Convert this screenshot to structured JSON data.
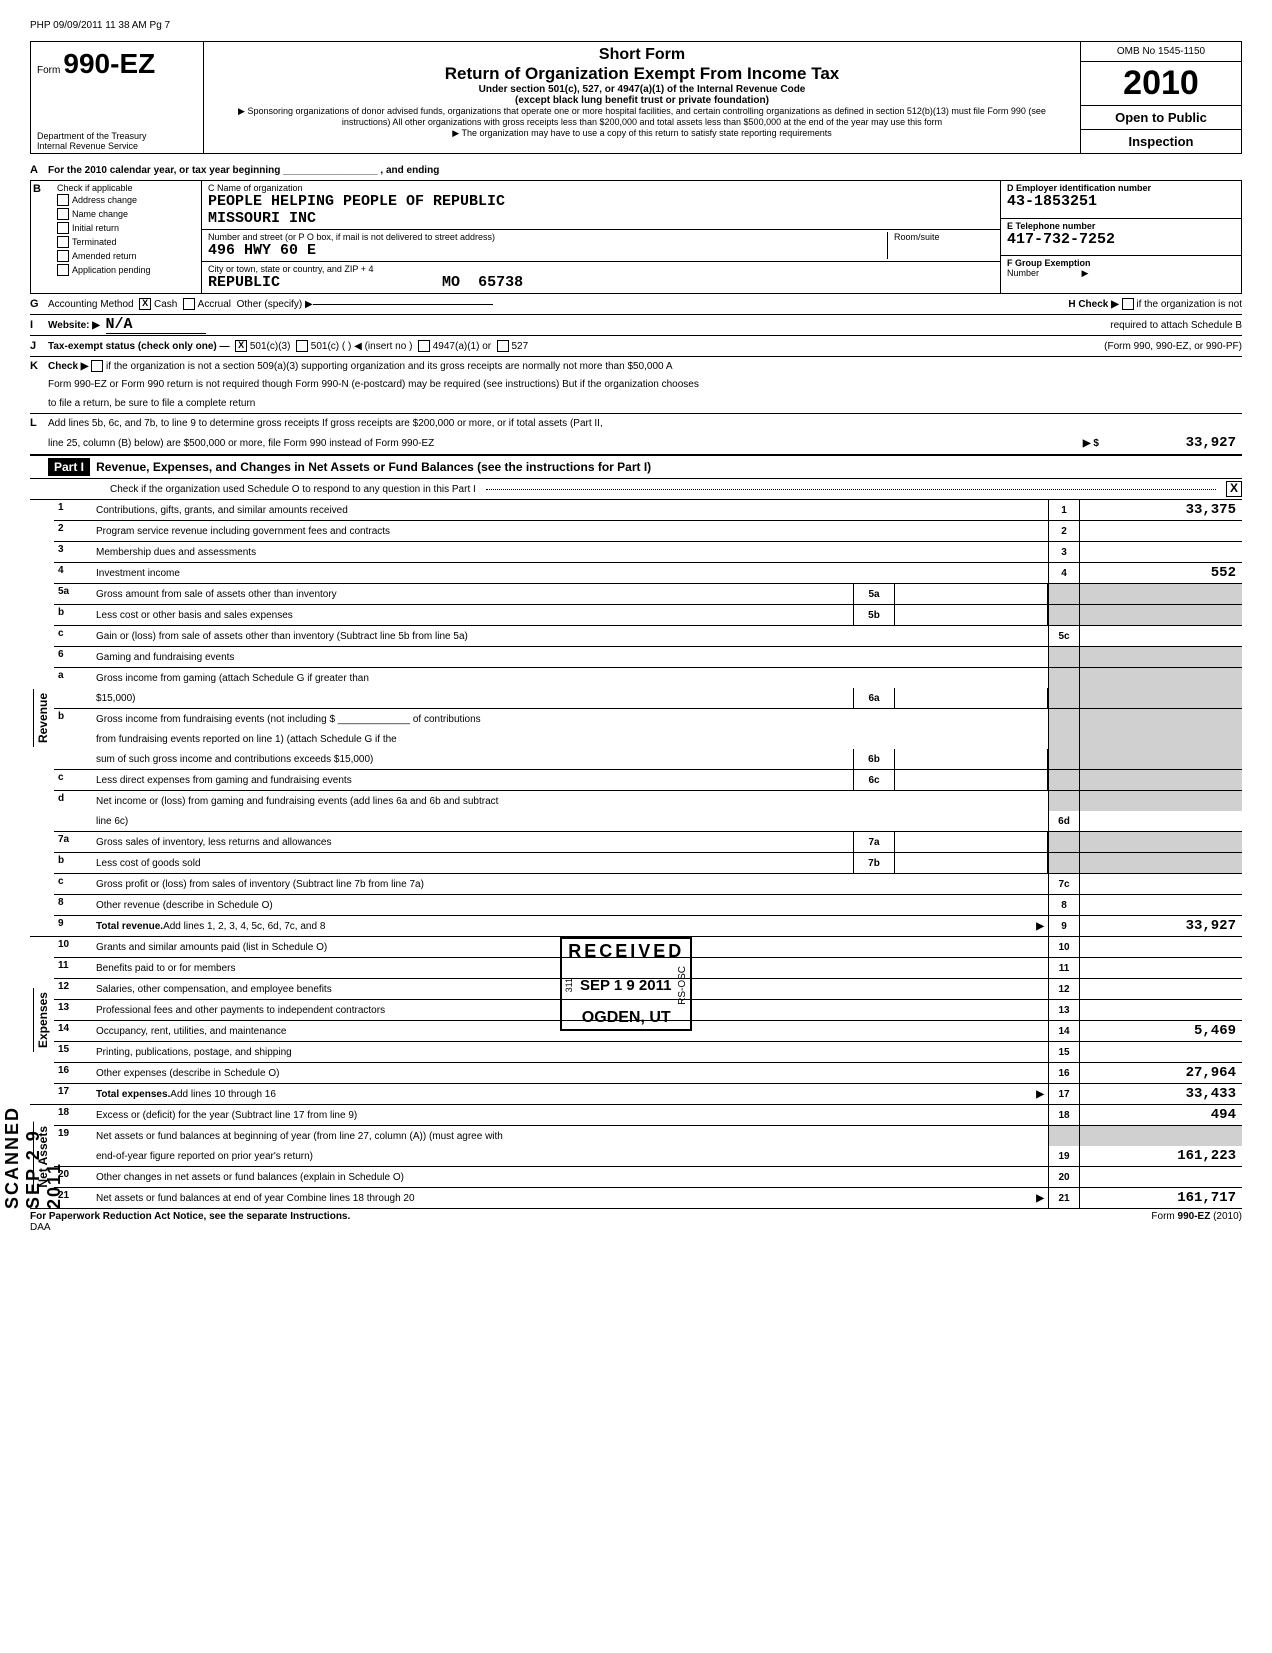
{
  "page_header": "PHP 09/09/2011 11 38 AM Pg 7",
  "form": {
    "prefix": "Form",
    "number": "990-EZ",
    "dept": "Department of the Treasury\nInternal Revenue Service"
  },
  "title": {
    "short": "Short Form",
    "main": "Return of Organization Exempt From Income Tax",
    "sub1": "Under section 501(c), 527, or 4947(a)(1) of the Internal Revenue Code",
    "sub2": "(except black lung benefit trust or private foundation)",
    "fine1": "▶ Sponsoring organizations of donor advised funds, organizations that operate one or more hospital facilities, and certain controlling organizations as defined in section 512(b)(13) must file Form 990 (see instructions) All other organizations with gross receipts less than $200,000 and total assets less than $500,000 at the end of the year may use this form",
    "fine2": "▶ The organization may have to use a copy of this return to satisfy state reporting requirements"
  },
  "right_box": {
    "omb": "OMB No 1545-1150",
    "year": "2010",
    "open": "Open to Public",
    "inspection": "Inspection"
  },
  "line_a": "For the 2010 calendar year, or tax year beginning _________________ , and ending",
  "check_b": {
    "header": "Check if applicable",
    "items": [
      "Address change",
      "Name change",
      "Initial return",
      "Terminated",
      "Amended return",
      "Application pending"
    ]
  },
  "org": {
    "c_label": "C  Name of organization",
    "name1": "PEOPLE HELPING PEOPLE OF REPUBLIC",
    "name2": "MISSOURI INC",
    "addr_label": "Number and street (or P O  box, if mail is not delivered to street address)",
    "room_label": "Room/suite",
    "addr": "496 HWY 60 E",
    "city_label": "City or town, state or country, and ZIP + 4",
    "city": "REPUBLIC",
    "state": "MO",
    "zip": "65738"
  },
  "right_info": {
    "d_label": "D  Employer identification number",
    "ein": "43-1853251",
    "e_label": "E  Telephone number",
    "phone": "417-732-7252",
    "f_label": "F  Group Exemption",
    "f_label2": "Number",
    "f_arrow": "▶"
  },
  "line_g": {
    "label": "Accounting Method",
    "cash_x": "X",
    "cash": "Cash",
    "accrual": "Accrual",
    "other": "Other (specify) ▶",
    "h_label": "H  Check ▶",
    "h_text": "if the organization is not",
    "h_text2": "required to attach Schedule B"
  },
  "line_i": {
    "label": "Website: ▶",
    "value": "N/A"
  },
  "line_j": {
    "label": "Tax-exempt status (check only one) —",
    "x": "X",
    "opts": [
      "501(c)(3)",
      "501(c) (      ) ◀ (insert no )",
      "4947(a)(1) or",
      "527"
    ],
    "right": "(Form 990, 990-EZ, or 990-PF)"
  },
  "line_k": {
    "label": "Check ▶",
    "text": "if the organization is not a section 509(a)(3) supporting organization and its gross receipts are normally not more than $50,000  A",
    "text2": "Form 990-EZ or Form 990 return is not required though Form 990-N (e-postcard) may be required (see instructions)  But if the organization chooses",
    "text3": "to file a return, be sure to file a complete return"
  },
  "line_l": {
    "text1": "Add lines 5b, 6c, and 7b, to line 9 to determine gross receipts  If gross receipts are $200,000 or more, or if total assets (Part II,",
    "text2": "line 25, column (B) below) are $500,000 or more, file Form 990 instead of Form 990-EZ",
    "arrow": "▶ $",
    "amount": "33,927"
  },
  "part1": {
    "label": "Part I",
    "title": "Revenue, Expenses, and Changes in Net Assets or Fund Balances (see the instructions for Part I)",
    "check_text": "Check if the organization used Schedule O to respond to any question in this Part I",
    "check_x": "X"
  },
  "sections": {
    "revenue": "Revenue",
    "expenses": "Expenses",
    "netassets": "Net Assets"
  },
  "rows": [
    {
      "n": "1",
      "d": "Contributions, gifts, grants, and similar amounts received",
      "ln": "1",
      "amt": "33,375"
    },
    {
      "n": "2",
      "d": "Program service revenue including government fees and contracts",
      "ln": "2",
      "amt": ""
    },
    {
      "n": "3",
      "d": "Membership dues and assessments",
      "ln": "3",
      "amt": ""
    },
    {
      "n": "4",
      "d": "Investment income",
      "ln": "4",
      "amt": "552"
    },
    {
      "n": "5a",
      "d": "Gross amount from sale of assets other than inventory",
      "sub": "5a"
    },
    {
      "n": "b",
      "d": "Less  cost or other basis and sales expenses",
      "sub": "5b"
    },
    {
      "n": "c",
      "d": "Gain or (loss) from sale of assets other than inventory (Subtract line 5b from line 5a)",
      "ln": "5c",
      "amt": ""
    },
    {
      "n": "6",
      "d": "Gaming and fundraising events"
    },
    {
      "n": "a",
      "d": "Gross income from gaming (attach Schedule G if greater than",
      "d2": "$15,000)",
      "sub": "6a"
    },
    {
      "n": "b",
      "d": "Gross income from fundraising events (not including  $ _____________ of contributions",
      "d2": "from fundraising events reported on line 1) (attach Schedule G if the",
      "d3": "sum of such gross income and contributions exceeds $15,000)",
      "sub": "6b"
    },
    {
      "n": "c",
      "d": "Less  direct expenses from gaming and fundraising events",
      "sub": "6c"
    },
    {
      "n": "d",
      "d": "Net income or (loss) from gaming and fundraising events (add lines 6a and 6b and subtract",
      "d2": "line 6c)",
      "ln": "6d",
      "amt": ""
    },
    {
      "n": "7a",
      "d": "Gross sales of inventory, less returns and allowances",
      "sub": "7a"
    },
    {
      "n": "b",
      "d": "Less  cost of goods sold",
      "sub": "7b"
    },
    {
      "n": "c",
      "d": "Gross profit or (loss) from sales of inventory (Subtract line 7b from line 7a)",
      "ln": "7c",
      "amt": ""
    },
    {
      "n": "8",
      "d": "Other revenue (describe in Schedule O)",
      "ln": "8",
      "amt": ""
    },
    {
      "n": "9",
      "d": "Total revenue. Add lines 1, 2, 3, 4, 5c, 6d, 7c, and 8",
      "bold": true,
      "arrow": true,
      "ln": "9",
      "amt": "33,927"
    }
  ],
  "exp_rows": [
    {
      "n": "10",
      "d": "Grants and similar amounts paid (list in Schedule O)",
      "ln": "10",
      "amt": ""
    },
    {
      "n": "11",
      "d": "Benefits paid to or for members",
      "ln": "11",
      "amt": ""
    },
    {
      "n": "12",
      "d": "Salaries, other compensation, and employee benefits",
      "ln": "12",
      "amt": ""
    },
    {
      "n": "13",
      "d": "Professional fees and other payments to independent contractors",
      "ln": "13",
      "amt": ""
    },
    {
      "n": "14",
      "d": "Occupancy, rent, utilities, and maintenance",
      "ln": "14",
      "amt": "5,469"
    },
    {
      "n": "15",
      "d": "Printing, publications, postage, and shipping",
      "ln": "15",
      "amt": ""
    },
    {
      "n": "16",
      "d": "Other expenses (describe in Schedule O)",
      "ln": "16",
      "amt": "27,964"
    },
    {
      "n": "17",
      "d": "Total expenses. Add lines 10 through 16",
      "bold": true,
      "arrow": true,
      "ln": "17",
      "amt": "33,433"
    }
  ],
  "na_rows": [
    {
      "n": "18",
      "d": "Excess or (deficit) for the year (Subtract line 17 from line 9)",
      "ln": "18",
      "amt": "494"
    },
    {
      "n": "19",
      "d": "Net assets or fund balances at beginning of year (from line 27, column (A)) (must agree with",
      "d2": "end-of-year figure reported on prior year's return)",
      "ln": "19",
      "amt": "161,223"
    },
    {
      "n": "20",
      "d": "Other changes in net assets or fund balances (explain in Schedule O)",
      "ln": "20",
      "amt": ""
    },
    {
      "n": "21",
      "d": "Net assets or fund balances at end of year  Combine lines 18 through 20",
      "arrow": true,
      "ln": "21",
      "amt": "161,717"
    }
  ],
  "footer": {
    "left": "For Paperwork Reduction Act Notice, see the separate Instructions.",
    "daa": "DAA",
    "right": "Form 990-EZ (2010)"
  },
  "stamps": {
    "received": "RECEIVED",
    "date": "SEP 1 9 2011",
    "ogden": "OGDEN, UT",
    "rsosc": "RS-OSC",
    "n311": "311",
    "scanned": "SCANNED SEP 2 9 2011"
  }
}
